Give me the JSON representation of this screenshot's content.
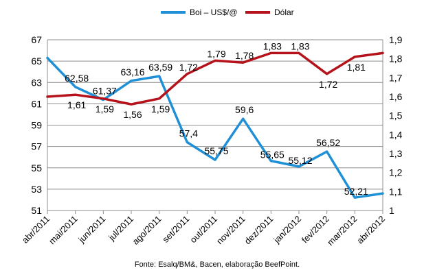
{
  "chart_data": {
    "type": "line",
    "categories": [
      "abr/2011",
      "mai/2011",
      "jun/2011",
      "jul/2011",
      "ago/2011",
      "set/2011",
      "out/2011",
      "nov/2011",
      "dez/2011",
      "jan/2012",
      "fev/2012",
      "mar/2012",
      "abr/2012"
    ],
    "series": [
      {
        "name": "Boi – US$/@",
        "axis": "left",
        "color": "#1f8fd6",
        "values": [
          65.3,
          62.58,
          61.37,
          63.16,
          63.59,
          57.4,
          55.75,
          59.6,
          55.65,
          55.12,
          56.52,
          52.21,
          52.6
        ],
        "labels": [
          "",
          "62,58",
          "61,37",
          "63,16",
          "63,59",
          "57,4",
          "55,75",
          "59,6",
          "55,65",
          "55,12",
          "56,52",
          "52,21",
          ""
        ]
      },
      {
        "name": "Dólar",
        "axis": "right",
        "color": "#b5121b",
        "values": [
          1.6,
          1.61,
          1.59,
          1.56,
          1.59,
          1.72,
          1.79,
          1.78,
          1.83,
          1.83,
          1.72,
          1.81,
          1.83
        ],
        "labels": [
          "",
          "1,61",
          "1,59",
          "1,56",
          "1,59",
          "1,72",
          "1,79",
          "1,78",
          "1,83",
          "1,83",
          "1,72",
          "1,81",
          ""
        ]
      }
    ],
    "y_left": {
      "min": 51,
      "max": 67,
      "ticks": [
        "51",
        "53",
        "55",
        "57",
        "59",
        "61",
        "63",
        "65",
        "67"
      ]
    },
    "y_right": {
      "min": 1,
      "max": 1.9,
      "ticks": [
        "1",
        "1,1",
        "1,2",
        "1,3",
        "1,4",
        "1,5",
        "1,6",
        "1,7",
        "1,8",
        "1,9"
      ]
    },
    "grid": true,
    "legend_position": "top-center"
  },
  "footer": {
    "source": "Fonte: Esalq/BM&, Bacen, elaboração BeefPoint."
  }
}
